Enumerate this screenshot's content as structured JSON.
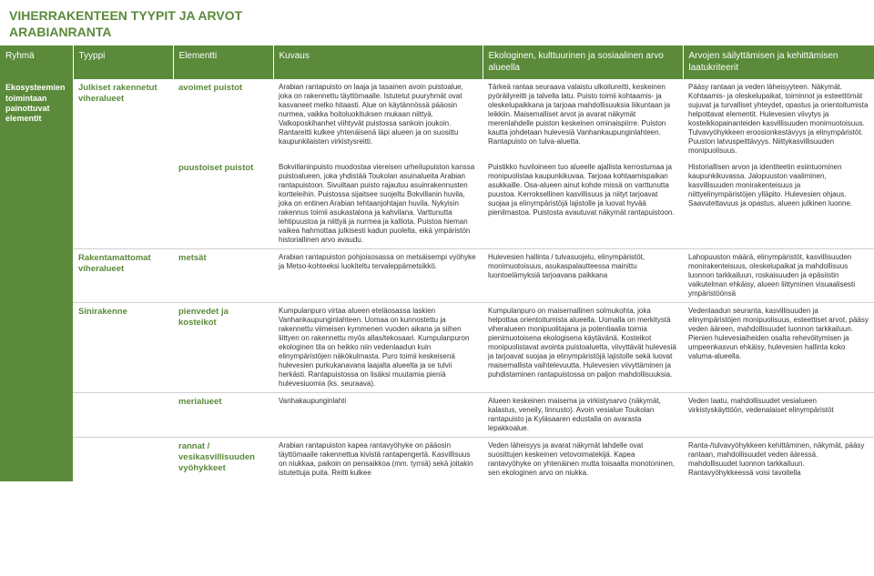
{
  "title": {
    "line1": "VIHERRAKENTEEN TYYPIT JA ARVOT",
    "line2": "ARABIANRANTA"
  },
  "colors": {
    "accent": "#5a8a3a",
    "header_text": "#ffffff",
    "body_text": "#333333",
    "rule": "#cfcfcf",
    "background": "#ffffff"
  },
  "header": {
    "ryhma": "Ryhmä",
    "tyyppi": "Tyyppi",
    "elementti": "Elementti",
    "kuvaus": "Kuvaus",
    "ekolog": "Ekologinen, kulttuurinen ja sosiaalinen arvo alueella",
    "arvot": "Arvojen säilyttämisen ja kehittämisen laatukriteerit"
  },
  "ryhma_label": "Ekosysteemien toimintaan painottuvat elementit",
  "rows": [
    {
      "tyyppi": "Julkiset rakennetut viheralueet",
      "elementti": "avoimet puistot",
      "kuvaus": "Arabian rantapuisto on laaja ja tasainen avoin puistoalue, joka on rakennettu täyttömaalle. Istutetut puuryhmät ovat kasvaneet melko hitaasti. Alue on käytännössä pääosin nurmea, vaikka hoitoluokituksen mukaan niittyä. Valkoposkihanhet viihtyvät puistossa sankoin joukoin. Rantareitti kulkee yhtenäisenä läpi alueen ja on suosittu kaupunkilaisten virkistysreitti.",
      "ekolog": "Tärkeä rantaa seuraava valaistu ulkoilureitti, keskeinen pyöräilyreitti ja talvella latu. Puisto toimii kohtaamis- ja oleskelupaikkana ja tarjoaa mahdollisuuksia liikuntaan ja leikkiin. Maisemalliset arvot ja avarat näkymät merenlahdelle puiston keskeinen ominaispiirre. Puiston kautta johdetaan hulevesiä Vanhankaupunginlahteen. Rantapuisto on tulva-aluetta.",
      "arvot": "Pääsy rantaan ja veden läheisyyteen. Näkymät. Kohtaamis- ja oleskelupaikat, toiminnot ja esteettömät sujuvat ja turvalliset yhteydet, opastus ja orientoitumista helpottavat elementit. Hulevesien viivytys ja kosteikkopainanteiden kasvillisuuden monimuotoisuus. Tulvavyöhykkeen eroosionkestävyys ja elinympäristöt. Puuston latvuspeittävyys. Niittykasvillisuuden monipuolisuus."
    },
    {
      "tyyppi": "",
      "elementti": "puustoiset puistot",
      "kuvaus": "Bokvillaninpuisto muodostaa viereisen urheilupuiston kanssa puistoalueen, joka yhdistää Toukolan asuinalueita Arabian rantapuistoon. Sivuiltaan puisto rajautuu asuinrakennusten kortteleihin. Puistossa sijaitsee suojeltu Bokvillanin huvila, joka on entinen Arabian tehtaanjohtajan huvila. Nykyisin rakennus toimii asukastalona ja kahvilana. Varttunutta lehtipuustoa ja niittyä ja nurmea ja kalliota. Puistoa hieman vaikea hahmottaa julkisesti kadun puolelta, eikä ympäristön historiallinen arvo avaudu.",
      "ekolog": "Puistikko huviloineen tuo alueelle ajallista kerrostumaa ja monipuolistaa kaupunkikuvaa. Tarjoaa kohtaamispaikan asukkaille. Osa-alueen ainut kohde missä on varttunutta puustoa. Kerroksellinen kasvillisuus ja niityt tarjoavat suojaa ja elinympäristöjä lajistolle ja luovat hyvää pienilmastoa. Puistosta avautuvat näkymät rantapuistoon.",
      "arvot": "Historiallisen arvon ja identiteetin esiintuominen kaupunkikuvassa. Jalopuuston vaaliminen, kasvillisuuden monirakenteisuus ja niittyelinympäristöjen ylläpito. Hulevesien ohjaus. Saavutettavuus ja opastus, alueen julkinen luonne."
    },
    {
      "tyyppi": "Rakentamattomat viheralueet",
      "elementti": "metsät",
      "kuvaus": "Arabian rantapuiston pohjoisosassa on metsäisempi vyöhyke ja Metso-kohteeksi luokiteltu tervaleppämetsikkö.",
      "ekolog": "Hulevesien hallinta / tulvasuojelu, elinympäristöt, monimuotoisuus, asukaspalautteessa mainittu luontoelämyksiä tarjoavana paikkana",
      "arvot": "Lahopuuston määrä, elinympäristöt, kasvillisuuden monirakenteisuus, oleskelupaikat ja mahdollisuus luonnon tarkkailuun, roskaisuuden ja epäsiistin vaikutelman ehkäisy, alueen liittyminen visuaalisesti ympäristöönsä"
    },
    {
      "tyyppi": "Sinirakenne",
      "elementti": "pienvedet ja kosteikot",
      "kuvaus": "Kumpulanpuro virtaa alueen eteläosassa laskien Vanhankaupunginlahteen. Uomaa on kunnostettu ja rakennettu viimeisen kymmenen vuoden aikana ja siihen liittyen on rakennettu myös allas/tekosaari. Kumpulanpuron ekologinen tila on heikko niin vedenlaadun kuin elinympäristöjen näkökulmasta. Puro toimii keskeisenä hulevesien purkukanavana laajalta alueelta ja se tulvii herkästi. Rantapuistossa on lisäksi muutamia pieniä hulevesiuomia (ks. seuraava).",
      "ekolog": "Kumpulanpuro on maisemallinen solmukohta, joka helpottaa orientoitumista alueella. Uomalla on merkitystä viheralueen monipuolitajana ja potentiaalia toimia pienimuotoisena ekologisena käytävänä. Kosteikot monipuolistavat avointa puistoaluetta, viivyttävät hulevesiä ja tarjoavat suojaa ja elinympäristöjä lajistolle sekä luovat maisemallista vaihtelevuutta. Hulevesien viivyttäminen ja puhdistaminen rantapuistossa on paljon mahdollisuuksia.",
      "arvot": "Vedenlaadun seuranta, kasvillisuuden ja elinympäristöjen monipuolisuus, esteettiset arvot, pääsy veden ääreen, mahdollisuudet luonnon tarkkailuun. Pienien hulevesiaiheiden osalta rehevöitymisen ja umpeenkasvun ehkäisy, hulevesien hallinta koko valuma-alueella."
    },
    {
      "tyyppi": "",
      "elementti": "merialueet",
      "kuvaus": "Vanhakaupunginlahti",
      "ekolog": "Alueen keskeinen maisema ja virkistysarvo (näkymät, kalastus, veneily, linnusto). Avoin vesialue Toukolan rantapuisto ja Kyläsaaren edustalla on avarasta lepakkoalue.",
      "arvot": "Veden laatu, mahdollisuudet vesialueen virkistyskäyttöön, vedenalaiset elinympäristöt"
    },
    {
      "tyyppi": "",
      "elementti": "rannat / vesikasvillisuuden vyöhykkeet",
      "kuvaus": "Arabian rantapuiston kapea rantavyöhyke on pääosin täyttömaalle rakennettua kivistä rantapengertä. Kasvillisuus on niukkaa, paikoin on pensaikkoa (mm. tyrniä) sekä joitakin istutettuja puita. Reitti kulkee",
      "ekolog": "Veden läheisyys ja avarat näkymät lahdelle ovat suosittujen keskeinen vetovoimatekijä. Kapea rantavyöhyke on yhtenäinen mutta toisaalta monotoninen, sen ekologinen arvo on niukka.",
      "arvot": "Ranta-/tulvavyöhykkeen kehittäminen, näkymät, pääsy rantaan, mahdollisuudet veden ääressä. mahdollisuudet luonnon tarkkailuun. Rantavyöhykkeessä voisi tavoitella"
    }
  ]
}
